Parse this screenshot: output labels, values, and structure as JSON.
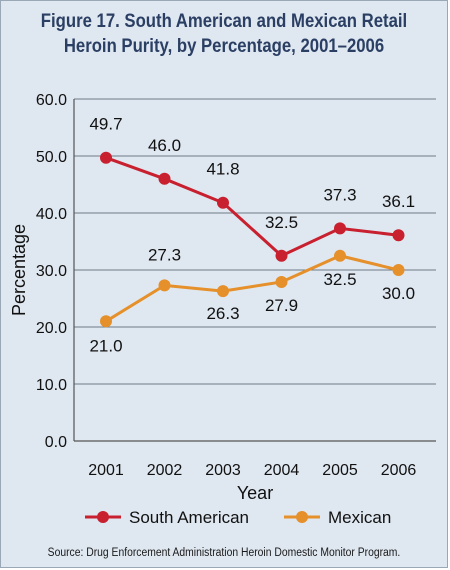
{
  "figure": {
    "title_line1": "Figure 17. South American and Mexican Retail",
    "title_line2": "Heroin Purity, by Percentage, 2001–2006",
    "source": "Source: Drug Enforcement Administration Heroin Domestic Monitor Program."
  },
  "chart_data": {
    "type": "line",
    "title": "Figure 17. South American and Mexican Retail Heroin Purity, by Percentage, 2001–2006",
    "xlabel": "Year",
    "ylabel": "Percentage",
    "categories": [
      "2001",
      "2002",
      "2003",
      "2004",
      "2005",
      "2006"
    ],
    "ylim": [
      0,
      60
    ],
    "yticks": [
      "0.0",
      "10.0",
      "20.0",
      "30.0",
      "40.0",
      "50.0",
      "60.0"
    ],
    "grid": true,
    "legend_position": "bottom",
    "series": [
      {
        "name": "South American",
        "color": "#c8202f",
        "values": [
          49.7,
          46.0,
          41.8,
          32.5,
          37.3,
          36.1
        ],
        "labels": [
          "49.7",
          "46.0",
          "41.8",
          "32.5",
          "37.3",
          "36.1"
        ]
      },
      {
        "name": "Mexican",
        "color": "#e5902a",
        "values": [
          21.0,
          27.3,
          26.3,
          27.9,
          32.5,
          30.0
        ],
        "labels": [
          "21.0",
          "27.3",
          "26.3",
          "27.9",
          "32.5",
          "30.0"
        ]
      }
    ]
  }
}
